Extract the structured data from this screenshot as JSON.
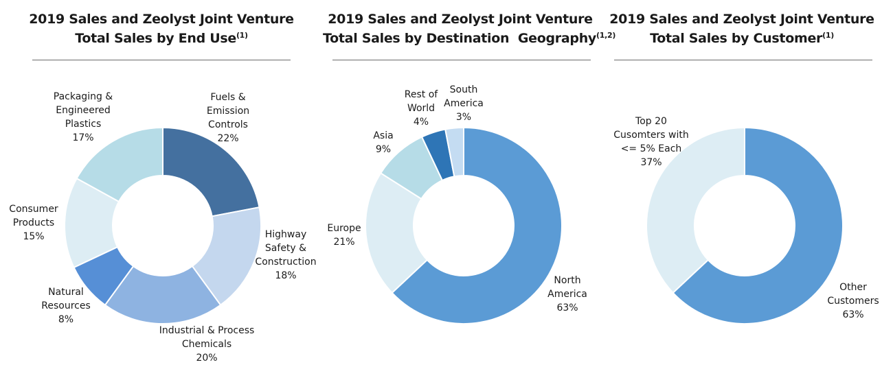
{
  "chart_data": [
    {
      "type": "pie",
      "title": "2019 Sales and Zeolyst Joint Venture",
      "title_line2": "Total Sales by End Use",
      "footnote_ref": "(1)",
      "slices": [
        {
          "label_lines": [
            "Fuels &",
            "Emission",
            "Controls"
          ],
          "value_label": "22%",
          "value": 22,
          "color": "#44709f"
        },
        {
          "label_lines": [
            "Highway",
            "Safety &",
            "Construction"
          ],
          "value_label": "18%",
          "value": 18,
          "color": "#c4d7ee"
        },
        {
          "label_lines": [
            "Industrial & Process",
            "Chemicals"
          ],
          "value_label": "20%",
          "value": 20,
          "color": "#8eb3e1"
        },
        {
          "label_lines": [
            "Natural",
            "Resources"
          ],
          "value_label": "8%",
          "value": 8,
          "color": "#568fd6"
        },
        {
          "label_lines": [
            "Consumer",
            "Products"
          ],
          "value_label": "15%",
          "value": 15,
          "color": "#ddedf4"
        },
        {
          "label_lines": [
            "Packaging &",
            "Engineered",
            "Plastics"
          ],
          "value_label": "17%",
          "value": 17,
          "color": "#b6dce7"
        }
      ]
    },
    {
      "type": "pie",
      "title": "2019 Sales and Zeolyst Joint Venture",
      "title_line2": "Total Sales by Destination  Geography",
      "footnote_ref": "(1,2)",
      "slices": [
        {
          "label_lines": [
            "North",
            "America"
          ],
          "value_label": "63%",
          "value": 63,
          "color": "#5b9bd5"
        },
        {
          "label_lines": [
            "Europe"
          ],
          "value_label": "21%",
          "value": 21,
          "color": "#ddedf4"
        },
        {
          "label_lines": [
            "Asia"
          ],
          "value_label": "9%",
          "value": 9,
          "color": "#b6dce7"
        },
        {
          "label_lines": [
            "Rest of",
            "World"
          ],
          "value_label": "4%",
          "value": 4,
          "color": "#2e75b6"
        },
        {
          "label_lines": [
            "South",
            "America"
          ],
          "value_label": "3%",
          "value": 3,
          "color": "#c4dcf2"
        }
      ]
    },
    {
      "type": "pie",
      "title": "2019 Sales and Zeolyst Joint Venture",
      "title_line2": "Total Sales by Customer",
      "footnote_ref": "(1)",
      "slices": [
        {
          "label_lines": [
            "Other",
            "Customers"
          ],
          "value_label": "63%",
          "value": 63,
          "color": "#5b9bd5"
        },
        {
          "label_lines": [
            "Top 20",
            "Cusomters with",
            "<= 5% Each"
          ],
          "value_label": "37%",
          "value": 37,
          "color": "#ddedf4"
        }
      ]
    }
  ]
}
